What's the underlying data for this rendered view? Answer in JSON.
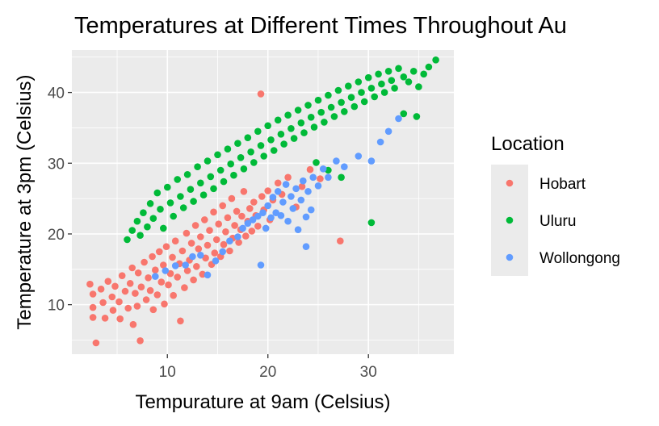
{
  "chart_data": {
    "type": "scatter",
    "title": "Temperatures at Different Times Throughout Au",
    "xlabel": "Tempurature at 9am (Celsius)",
    "ylabel": "Temperature at 3pm (Celsius)",
    "xlim": [
      0.5,
      38.5
    ],
    "ylim": [
      3,
      46
    ],
    "x_ticks": [
      10,
      20,
      30
    ],
    "y_ticks": [
      10,
      20,
      30,
      40
    ],
    "grid": true,
    "legend": {
      "title": "Location",
      "position": "right"
    },
    "series": [
      {
        "name": "Hobart",
        "color": "#F8766D",
        "points": [
          [
            2.3,
            12.9
          ],
          [
            2.6,
            11.5
          ],
          [
            2.6,
            9.6
          ],
          [
            2.6,
            8.2
          ],
          [
            2.9,
            4.6
          ],
          [
            3.4,
            12.2
          ],
          [
            3.6,
            10.3
          ],
          [
            3.8,
            8.1
          ],
          [
            4.1,
            13.3
          ],
          [
            4.5,
            11.1
          ],
          [
            4.6,
            9.2
          ],
          [
            4.8,
            12.6
          ],
          [
            5.2,
            10.4
          ],
          [
            5.3,
            8.0
          ],
          [
            5.5,
            14.1
          ],
          [
            5.8,
            11.9
          ],
          [
            6.1,
            9.5
          ],
          [
            6.3,
            13.0
          ],
          [
            6.5,
            15.2
          ],
          [
            6.6,
            7.2
          ],
          [
            6.8,
            11.6
          ],
          [
            7.0,
            9.8
          ],
          [
            7.1,
            14.5
          ],
          [
            7.3,
            4.9
          ],
          [
            7.4,
            12.5
          ],
          [
            7.7,
            16.0
          ],
          [
            7.9,
            10.7
          ],
          [
            8.1,
            13.8
          ],
          [
            8.3,
            12.0
          ],
          [
            8.5,
            16.8
          ],
          [
            8.6,
            9.3
          ],
          [
            8.8,
            14.9
          ],
          [
            9.0,
            11.4
          ],
          [
            9.2,
            17.5
          ],
          [
            9.4,
            13.2
          ],
          [
            9.6,
            15.6
          ],
          [
            9.7,
            10.1
          ],
          [
            9.9,
            18.2
          ],
          [
            10.1,
            12.8
          ],
          [
            10.3,
            14.4
          ],
          [
            10.5,
            16.7
          ],
          [
            10.6,
            11.3
          ],
          [
            10.8,
            19.0
          ],
          [
            11.0,
            13.9
          ],
          [
            11.2,
            15.8
          ],
          [
            11.3,
            7.7
          ],
          [
            11.5,
            17.6
          ],
          [
            11.7,
            12.4
          ],
          [
            11.9,
            20.1
          ],
          [
            12.0,
            14.8
          ],
          [
            12.2,
            16.3
          ],
          [
            12.4,
            18.7
          ],
          [
            12.6,
            13.5
          ],
          [
            12.8,
            21.2
          ],
          [
            12.9,
            15.4
          ],
          [
            13.1,
            17.9
          ],
          [
            13.3,
            19.6
          ],
          [
            13.5,
            14.3
          ],
          [
            13.7,
            22.0
          ],
          [
            13.8,
            16.6
          ],
          [
            14.0,
            18.4
          ],
          [
            14.2,
            20.5
          ],
          [
            14.4,
            15.7
          ],
          [
            14.6,
            23.1
          ],
          [
            14.7,
            17.3
          ],
          [
            14.9,
            19.2
          ],
          [
            15.1,
            21.4
          ],
          [
            15.3,
            16.8
          ],
          [
            15.5,
            24.0
          ],
          [
            15.6,
            18.5
          ],
          [
            15.8,
            20.3
          ],
          [
            16.0,
            22.3
          ],
          [
            16.2,
            17.6
          ],
          [
            16.4,
            25.0
          ],
          [
            16.5,
            19.4
          ],
          [
            16.7,
            21.2
          ],
          [
            16.9,
            23.2
          ],
          [
            17.1,
            18.8
          ],
          [
            17.3,
            20.6
          ],
          [
            17.4,
            22.5
          ],
          [
            17.6,
            26.0
          ],
          [
            17.8,
            19.7
          ],
          [
            18.0,
            21.8
          ],
          [
            18.2,
            23.6
          ],
          [
            18.4,
            20.4
          ],
          [
            18.6,
            24.5
          ],
          [
            18.8,
            22.6
          ],
          [
            19.0,
            21.1
          ],
          [
            19.3,
            39.8
          ],
          [
            19.4,
            25.3
          ],
          [
            19.6,
            23.4
          ],
          [
            20.0,
            26.1
          ],
          [
            20.2,
            22.0
          ],
          [
            20.5,
            24.8
          ],
          [
            21.0,
            27.2
          ],
          [
            21.4,
            25.6
          ],
          [
            22.0,
            28.0
          ],
          [
            22.8,
            23.8
          ],
          [
            23.4,
            26.7
          ],
          [
            24.2,
            29.1
          ],
          [
            25.2,
            27.8
          ],
          [
            27.2,
            19.0
          ]
        ]
      },
      {
        "name": "Uluru",
        "color": "#00BA38",
        "points": [
          [
            6.0,
            19.2
          ],
          [
            6.5,
            20.5
          ],
          [
            7.0,
            21.8
          ],
          [
            7.3,
            19.8
          ],
          [
            7.6,
            23.0
          ],
          [
            8.0,
            21.0
          ],
          [
            8.3,
            24.3
          ],
          [
            8.6,
            22.2
          ],
          [
            9.0,
            25.8
          ],
          [
            9.3,
            23.5
          ],
          [
            9.6,
            20.8
          ],
          [
            10.0,
            26.6
          ],
          [
            10.3,
            24.4
          ],
          [
            10.6,
            22.5
          ],
          [
            11.0,
            27.7
          ],
          [
            11.3,
            25.3
          ],
          [
            11.6,
            23.7
          ],
          [
            12.0,
            28.4
          ],
          [
            12.3,
            26.3
          ],
          [
            12.6,
            24.6
          ],
          [
            13.0,
            29.5
          ],
          [
            13.3,
            27.2
          ],
          [
            13.6,
            25.5
          ],
          [
            14.0,
            30.3
          ],
          [
            14.3,
            28.1
          ],
          [
            14.6,
            26.4
          ],
          [
            15.0,
            31.2
          ],
          [
            15.3,
            29.0
          ],
          [
            15.6,
            27.4
          ],
          [
            16.0,
            32.0
          ],
          [
            16.3,
            29.9
          ],
          [
            16.6,
            28.3
          ],
          [
            17.0,
            32.8
          ],
          [
            17.3,
            30.8
          ],
          [
            17.6,
            29.2
          ],
          [
            18.0,
            33.6
          ],
          [
            18.3,
            31.6
          ],
          [
            18.6,
            30.1
          ],
          [
            19.0,
            34.5
          ],
          [
            19.3,
            32.5
          ],
          [
            19.6,
            31.0
          ],
          [
            20.0,
            35.3
          ],
          [
            20.3,
            33.3
          ],
          [
            20.6,
            31.8
          ],
          [
            21.0,
            36.1
          ],
          [
            21.3,
            34.1
          ],
          [
            21.6,
            32.7
          ],
          [
            22.0,
            36.8
          ],
          [
            22.3,
            34.9
          ],
          [
            22.6,
            33.5
          ],
          [
            23.0,
            37.5
          ],
          [
            23.3,
            35.7
          ],
          [
            23.6,
            34.3
          ],
          [
            24.0,
            38.2
          ],
          [
            24.3,
            36.5
          ],
          [
            24.6,
            35.1
          ],
          [
            25.0,
            38.9
          ],
          [
            25.3,
            37.2
          ],
          [
            25.6,
            35.8
          ],
          [
            26.0,
            39.6
          ],
          [
            26.3,
            37.9
          ],
          [
            26.6,
            36.6
          ],
          [
            27.0,
            40.3
          ],
          [
            27.3,
            38.6
          ],
          [
            27.6,
            37.3
          ],
          [
            28.0,
            40.9
          ],
          [
            28.3,
            39.3
          ],
          [
            28.6,
            38.0
          ],
          [
            29.0,
            41.5
          ],
          [
            29.3,
            40.0
          ],
          [
            29.6,
            38.7
          ],
          [
            30.0,
            42.1
          ],
          [
            30.3,
            40.6
          ],
          [
            30.6,
            39.4
          ],
          [
            31.0,
            42.6
          ],
          [
            31.3,
            41.2
          ],
          [
            31.6,
            40.0
          ],
          [
            32.0,
            43.0
          ],
          [
            32.3,
            41.7
          ],
          [
            32.6,
            40.6
          ],
          [
            33.0,
            43.4
          ],
          [
            33.5,
            42.2
          ],
          [
            34.0,
            41.5
          ],
          [
            34.5,
            43.0
          ],
          [
            35.0,
            40.8
          ],
          [
            35.5,
            42.6
          ],
          [
            36.0,
            43.6
          ],
          [
            36.7,
            44.6
          ],
          [
            33.5,
            37.0
          ],
          [
            34.8,
            36.6
          ],
          [
            30.3,
            21.6
          ],
          [
            27.3,
            28.0
          ],
          [
            26.0,
            29.0
          ],
          [
            24.8,
            30.1
          ]
        ]
      },
      {
        "name": "Wollongong",
        "color": "#619CFF",
        "points": [
          [
            8.8,
            14.0
          ],
          [
            9.8,
            14.8
          ],
          [
            10.8,
            15.5
          ],
          [
            11.8,
            15.6
          ],
          [
            12.5,
            16.8
          ],
          [
            13.3,
            17.0
          ],
          [
            14.0,
            14.2
          ],
          [
            14.8,
            16.2
          ],
          [
            15.5,
            17.5
          ],
          [
            16.2,
            19.0
          ],
          [
            17.0,
            19.6
          ],
          [
            17.5,
            20.8
          ],
          [
            18.0,
            21.5
          ],
          [
            18.5,
            22.0
          ],
          [
            19.0,
            22.5
          ],
          [
            19.3,
            15.6
          ],
          [
            19.5,
            23.0
          ],
          [
            19.8,
            20.8
          ],
          [
            20.0,
            24.0
          ],
          [
            20.3,
            22.3
          ],
          [
            20.5,
            25.2
          ],
          [
            20.8,
            23.0
          ],
          [
            21.0,
            26.0
          ],
          [
            21.3,
            22.6
          ],
          [
            21.5,
            24.5
          ],
          [
            21.8,
            27.0
          ],
          [
            22.0,
            21.8
          ],
          [
            22.3,
            25.3
          ],
          [
            22.5,
            23.6
          ],
          [
            22.8,
            26.4
          ],
          [
            23.0,
            20.6
          ],
          [
            23.3,
            24.8
          ],
          [
            23.5,
            27.5
          ],
          [
            23.8,
            22.4
          ],
          [
            24.0,
            26.0
          ],
          [
            24.3,
            23.4
          ],
          [
            24.5,
            28.0
          ],
          [
            25.0,
            26.8
          ],
          [
            25.5,
            29.2
          ],
          [
            26.0,
            28.0
          ],
          [
            26.8,
            30.3
          ],
          [
            27.6,
            29.5
          ],
          [
            29.0,
            31.0
          ],
          [
            30.3,
            30.3
          ],
          [
            31.2,
            33.0
          ],
          [
            32.0,
            34.5
          ],
          [
            33.0,
            36.3
          ],
          [
            23.8,
            18.2
          ]
        ]
      }
    ]
  }
}
